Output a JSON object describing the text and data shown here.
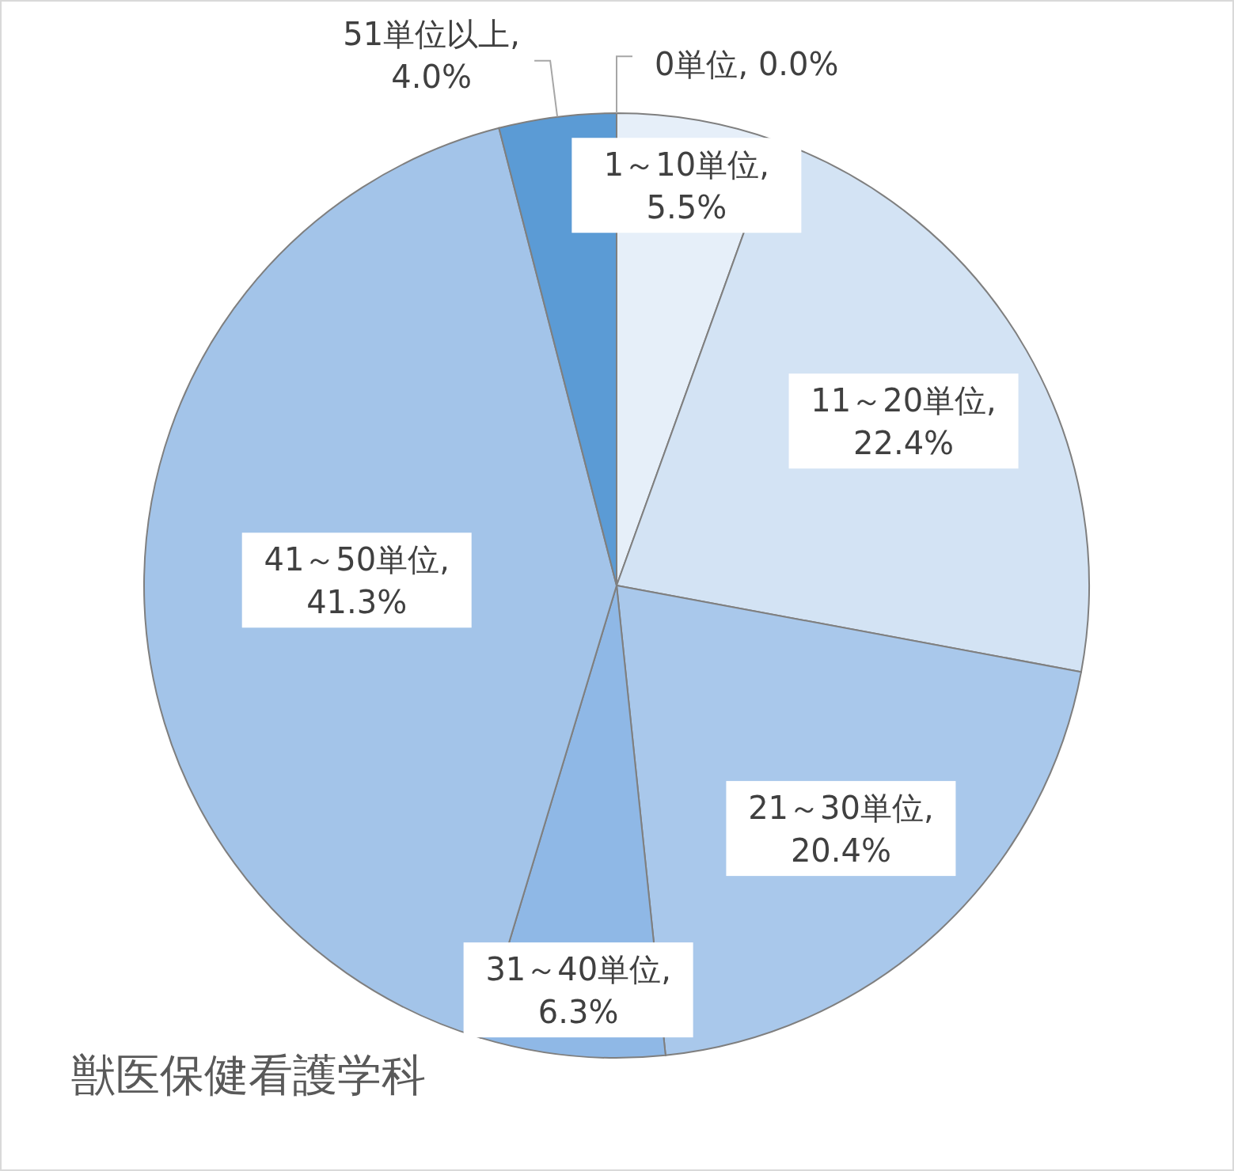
{
  "chart_data": {
    "type": "pie",
    "title": "獣医保健看護学科",
    "categories": [
      "0単位",
      "1～10単位",
      "11～20単位",
      "21～30単位",
      "31～40単位",
      "41～50単位",
      "51単位以上"
    ],
    "values": [
      0.0,
      5.5,
      22.4,
      20.4,
      6.3,
      41.3,
      4.0
    ],
    "value_labels": [
      ", 0.0%",
      ", 5.5%",
      ", 22.4%",
      ", 20.4%",
      ", 6.3%",
      ", 41.3%",
      ", 4.0%"
    ],
    "colors": [
      "#eef4fb",
      "#e6eff9",
      "#d3e3f4",
      "#a9c8eb",
      "#8fb8e6",
      "#a3c4e9",
      "#5b9bd5"
    ]
  }
}
